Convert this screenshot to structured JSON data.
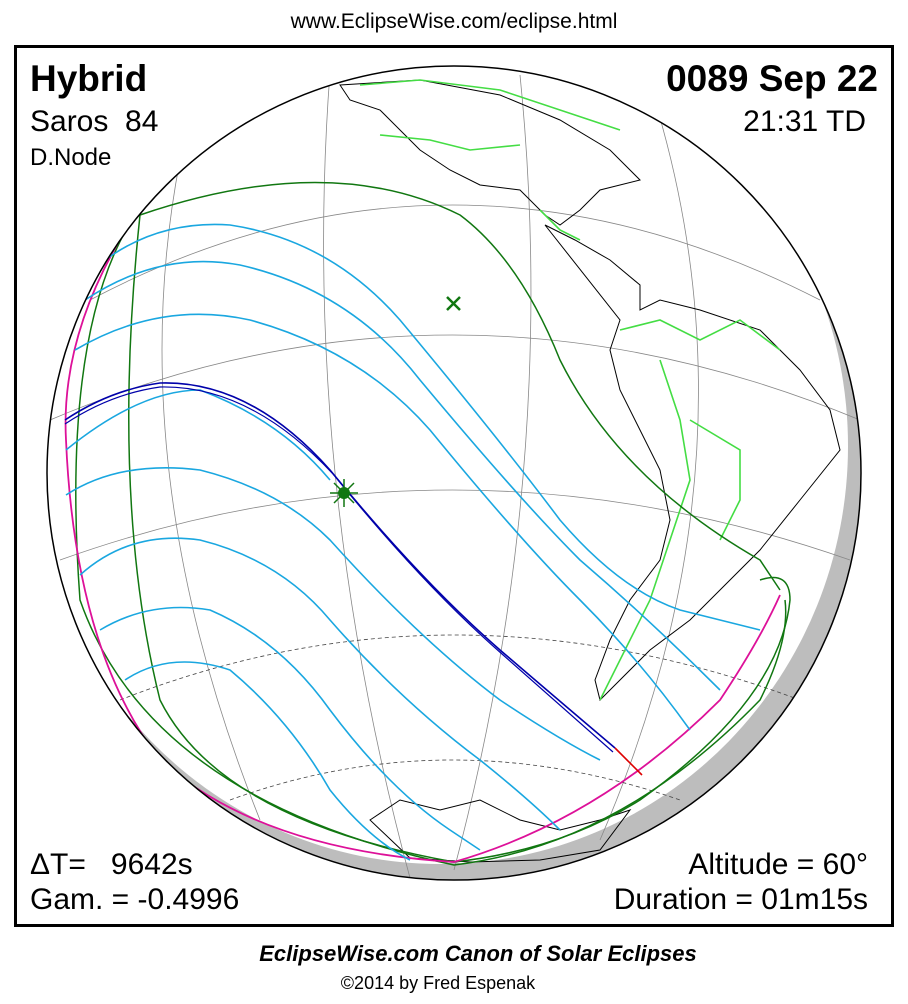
{
  "header": {
    "url": "www.EclipseWise.com/eclipse.html",
    "eclipse_type": "Hybrid",
    "saros": "Saros  84",
    "node": "D.Node",
    "date": "0089 Sep 22",
    "time": "21:31 TD"
  },
  "stats": {
    "delta_t": "ΔT=   9642s",
    "gamma": "Gam. = -0.4996",
    "altitude": "Altitude = 60°",
    "duration": "Duration = 01m15s"
  },
  "footer": {
    "title": "EclipseWise.com Canon of Solar Eclipses",
    "credit": "©2014 by Fred Espenak"
  }
}
